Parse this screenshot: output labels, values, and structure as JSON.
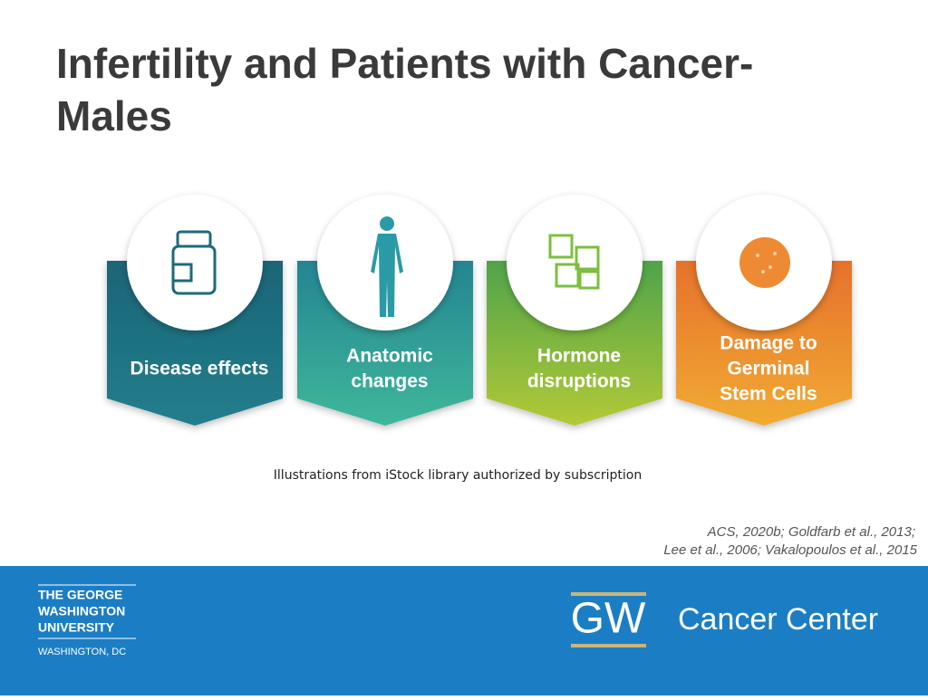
{
  "header": {
    "title_lines": [
      "Infertility and Patients with Cancer-",
      "Males"
    ]
  },
  "cards": [
    {
      "label_lines": [
        "Disease effects"
      ]
    },
    {
      "label_lines": [
        "Anatomic",
        "changes"
      ]
    },
    {
      "label_lines": [
        "Hormone",
        "disruptions"
      ]
    },
    {
      "label_lines": [
        "Damage to",
        "Germinal",
        "Stem Cells"
      ]
    }
  ],
  "caption": "Illustrations from iStock library authorized by subscription",
  "citations": [
    "ACS, 2020b; Goldfarb et al., 2013;",
    "Lee et al., 2006; Vakalopoulos et al., 2015"
  ],
  "footer": {
    "university_lines": [
      "THE GEORGE",
      "WASHINGTON",
      "UNIVERSITY"
    ],
    "location": "WASHINGTON, DC",
    "logo": "GW",
    "center": "Cancer Center"
  }
}
